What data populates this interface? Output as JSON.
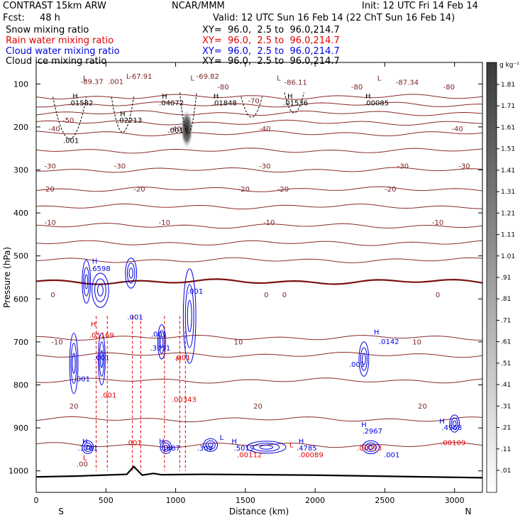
{
  "header": {
    "model": "CONTRAST 15km ARW",
    "center": "NCAR/MMM",
    "init": "Init: 12 UTC Fri 14 Feb 14",
    "fcst_label": "Fcst:",
    "fcst_value": "48 h",
    "valid": "Valid: 12 UTC Sun 16 Feb 14 (22 ChT Sun 16 Feb 14)",
    "fields": [
      {
        "label": "Snow mixing ratio",
        "xy": "XY=  96.0,  2.5 to  96.0,214.7",
        "color": "#000000"
      },
      {
        "label": "Rain water mixing ratio",
        "xy": "XY=  96.0,  2.5 to  96.0,214.7",
        "color": "#e00000"
      },
      {
        "label": "Cloud water mixing ratio",
        "xy": "XY=  96.0,  2.5 to  96.0,214.7",
        "color": "#0000e0"
      },
      {
        "label": "Cloud ice mixing ratio",
        "xy": "XY=  96.0,  2.5 to  96.0,214.7",
        "color": "#000000"
      }
    ]
  },
  "chart_data": {
    "type": "heatmap",
    "xlabel": "Distance (km)",
    "ylabel": "Pressure (hPa)",
    "x_ticks": [
      "0",
      "500",
      "1000",
      "1500",
      "2000",
      "2500",
      "3000"
    ],
    "y_ticks": [
      "100",
      "200",
      "300",
      "400",
      "500",
      "600",
      "700",
      "800",
      "900",
      "1000"
    ],
    "xlim": [
      0,
      3200
    ],
    "ylim": [
      50,
      1050
    ],
    "x_end_labels": {
      "left": "S",
      "right": "N"
    },
    "colorbar": {
      "unit": "g kg⁻¹",
      "ticks": [
        "1.81",
        "1.71",
        "1.61",
        "1.51",
        "1.41",
        "1.31",
        "1.21",
        "1.11",
        "1.01",
        ".91",
        ".81",
        ".71",
        ".61",
        ".51",
        ".41",
        ".31",
        ".21",
        ".11",
        ".01"
      ]
    },
    "temperature_contours": [
      {
        "t": "-80",
        "p": 130
      },
      {
        "t": "-70",
        "p": 148
      },
      {
        "t": "-60",
        "p": 168
      },
      {
        "t": "-50",
        "p": 190
      },
      {
        "t": "-40",
        "p": 215
      },
      {
        "t": "-30",
        "p": 255
      },
      {
        "t": "-20",
        "p": 300
      },
      {
        "t": "-10",
        "p": 345
      },
      {
        "t": "-10",
        "p": 385
      },
      {
        "t": "0",
        "p": 430
      },
      {
        "t": "0",
        "p": 470
      },
      {
        "t": "0",
        "p": 510
      },
      {
        "t": "0",
        "p": 560
      },
      {
        "t": "-10",
        "p": 690
      },
      {
        "t": "10",
        "p": 730
      },
      {
        "t": "10",
        "p": 790
      },
      {
        "t": "20",
        "p": 880
      },
      {
        "t": "20",
        "p": 940
      }
    ],
    "temperature_labels": [
      {
        "text": "-67.91",
        "x": 750,
        "p": 88
      },
      {
        "text": "-69.82",
        "x": 1230,
        "p": 88
      },
      {
        "text": "-89.37",
        "x": 400,
        "p": 100
      },
      {
        "text": ".001",
        "x": 570,
        "p": 100
      },
      {
        "text": "-86.11",
        "x": 1860,
        "p": 102
      },
      {
        "text": "-87.34",
        "x": 2660,
        "p": 102
      },
      {
        "text": "-80",
        "x": 1340,
        "p": 113
      },
      {
        "text": "-80",
        "x": 2300,
        "p": 113
      },
      {
        "text": "-80",
        "x": 2960,
        "p": 113
      },
      {
        "text": "-70",
        "x": 1560,
        "p": 145
      },
      {
        "text": "-50",
        "x": 230,
        "p": 190
      },
      {
        "text": "-40",
        "x": 130,
        "p": 210
      },
      {
        "text": "-40",
        "x": 1000,
        "p": 210
      },
      {
        "text": "-40",
        "x": 1640,
        "p": 210
      },
      {
        "text": "-40",
        "x": 3020,
        "p": 210
      },
      {
        "text": "-30",
        "x": 100,
        "p": 297
      },
      {
        "text": "-30",
        "x": 600,
        "p": 297
      },
      {
        "text": "-30",
        "x": 1640,
        "p": 297
      },
      {
        "text": "-30",
        "x": 2630,
        "p": 297
      },
      {
        "text": "-30",
        "x": 3070,
        "p": 297
      },
      {
        "text": "-20",
        "x": 90,
        "p": 350
      },
      {
        "text": "-20",
        "x": 740,
        "p": 350
      },
      {
        "text": "-20",
        "x": 1490,
        "p": 350
      },
      {
        "text": "-20",
        "x": 1770,
        "p": 350
      },
      {
        "text": "-20",
        "x": 2540,
        "p": 350
      },
      {
        "text": "-10",
        "x": 100,
        "p": 428
      },
      {
        "text": "-10",
        "x": 920,
        "p": 428
      },
      {
        "text": "-10",
        "x": 1670,
        "p": 428
      },
      {
        "text": "-10",
        "x": 2880,
        "p": 428
      },
      {
        "text": "0",
        "x": 120,
        "p": 596
      },
      {
        "text": "0",
        "x": 1650,
        "p": 596
      },
      {
        "text": "0",
        "x": 1780,
        "p": 596
      },
      {
        "text": "0",
        "x": 2880,
        "p": 596
      },
      {
        "text": "-10",
        "x": 150,
        "p": 706
      },
      {
        "text": "10",
        "x": 1450,
        "p": 706
      },
      {
        "text": "10",
        "x": 2730,
        "p": 706
      },
      {
        "text": "20",
        "x": 270,
        "p": 855
      },
      {
        "text": "20",
        "x": 1590,
        "p": 855
      },
      {
        "text": "20",
        "x": 2770,
        "p": 855
      },
      {
        "text": ".00",
        "x": 330,
        "p": 990
      }
    ],
    "highs_lows": [
      {
        "text": "L",
        "x": 350,
        "p": 92,
        "color": "#7a1f1f"
      },
      {
        "text": "L",
        "x": 660,
        "p": 88,
        "color": "#7a1f1f"
      },
      {
        "text": "L",
        "x": 1120,
        "p": 92,
        "color": "#7a1f1f"
      },
      {
        "text": "L",
        "x": 1740,
        "p": 92,
        "color": "#7a1f1f"
      },
      {
        "text": "L",
        "x": 2460,
        "p": 92,
        "color": "#7a1f1f"
      },
      {
        "text": "H",
        "x": 280,
        "p": 134,
        "color": "#000000"
      },
      {
        "text": "H",
        "x": 920,
        "p": 134,
        "color": "#000000"
      },
      {
        "text": "H",
        "x": 1290,
        "p": 134,
        "color": "#000000"
      },
      {
        "text": "H",
        "x": 1820,
        "p": 134,
        "color": "#000000"
      },
      {
        "text": "H",
        "x": 2380,
        "p": 134,
        "color": "#000000"
      },
      {
        "text": "H",
        "x": 620,
        "p": 175,
        "color": "#000000"
      },
      {
        "text": "H",
        "x": 420,
        "p": 518,
        "color": "#0000e0"
      },
      {
        "text": "H",
        "x": 410,
        "p": 665,
        "color": "#e00000"
      },
      {
        "text": "H",
        "x": 1020,
        "p": 745,
        "color": "#e00000"
      },
      {
        "text": "H",
        "x": 350,
        "p": 937,
        "color": "#0000e0"
      },
      {
        "text": "H",
        "x": 900,
        "p": 937,
        "color": "#0000e0"
      },
      {
        "text": "H",
        "x": 1420,
        "p": 937,
        "color": "#0000e0"
      },
      {
        "text": "H",
        "x": 1900,
        "p": 937,
        "color": "#0000e0"
      },
      {
        "text": "H",
        "x": 2350,
        "p": 898,
        "color": "#0000e0"
      },
      {
        "text": "H",
        "x": 2910,
        "p": 890,
        "color": "#0000e0"
      },
      {
        "text": "H",
        "x": 2440,
        "p": 683,
        "color": "#0000e0"
      },
      {
        "text": "L",
        "x": 1330,
        "p": 928,
        "color": "#0000e0"
      },
      {
        "text": "L",
        "x": 1830,
        "p": 945,
        "color": "#e00000"
      },
      {
        "text": "L",
        "x": 350,
        "p": 975,
        "color": "#e00000"
      }
    ],
    "values": [
      {
        "text": ".01582",
        "x": 320,
        "p": 150,
        "color": "#000000"
      },
      {
        "text": ".04072",
        "x": 970,
        "p": 150,
        "color": "#000000"
      },
      {
        "text": ".01848",
        "x": 1350,
        "p": 150,
        "color": "#000000"
      },
      {
        "text": ".01536",
        "x": 1860,
        "p": 150,
        "color": "#000000"
      },
      {
        "text": ".00085",
        "x": 2440,
        "p": 150,
        "color": "#000000"
      },
      {
        "text": ".02213",
        "x": 670,
        "p": 190,
        "color": "#000000"
      },
      {
        "text": ".001",
        "x": 1000,
        "p": 213,
        "color": "#000000"
      },
      {
        "text": ".001",
        "x": 250,
        "p": 237,
        "color": "#000000"
      },
      {
        "text": ".6598",
        "x": 460,
        "p": 535,
        "color": "#0000e0"
      },
      {
        "text": ".001",
        "x": 1140,
        "p": 588,
        "color": "#0000e0"
      },
      {
        "text": ".001",
        "x": 710,
        "p": 648,
        "color": "#0000e0"
      },
      {
        "text": ".001",
        "x": 880,
        "p": 688,
        "color": "#0000e0"
      },
      {
        "text": ".05169",
        "x": 470,
        "p": 690,
        "color": "#e00000"
      },
      {
        "text": ".3051",
        "x": 890,
        "p": 720,
        "color": "#0000e0"
      },
      {
        "text": ".001",
        "x": 470,
        "p": 742,
        "color": "#0000e0"
      },
      {
        "text": ".001",
        "x": 1050,
        "p": 742,
        "color": "#e00000"
      },
      {
        "text": ".001",
        "x": 2300,
        "p": 758,
        "color": "#0000e0"
      },
      {
        "text": ".0142",
        "x": 2530,
        "p": 705,
        "color": "#0000e0"
      },
      {
        "text": ".001",
        "x": 330,
        "p": 792,
        "color": "#0000e0"
      },
      {
        "text": ".001",
        "x": 520,
        "p": 830,
        "color": "#e00000"
      },
      {
        "text": ".00343",
        "x": 1060,
        "p": 840,
        "color": "#e00000"
      },
      {
        "text": ".1781",
        "x": 370,
        "p": 953,
        "color": "#0000e0"
      },
      {
        "text": ".001",
        "x": 700,
        "p": 940,
        "color": "#e00000"
      },
      {
        "text": ".1887",
        "x": 960,
        "p": 953,
        "color": "#0000e0"
      },
      {
        "text": ".309",
        "x": 1210,
        "p": 953,
        "color": "#0000e0"
      },
      {
        "text": ".5019",
        "x": 1490,
        "p": 953,
        "color": "#0000e0"
      },
      {
        "text": ".4785",
        "x": 1940,
        "p": 953,
        "color": "#0000e0"
      },
      {
        "text": ".2967",
        "x": 2410,
        "p": 913,
        "color": "#0000e0"
      },
      {
        "text": ".00013",
        "x": 2390,
        "p": 953,
        "color": "#e00000"
      },
      {
        "text": ".001",
        "x": 2550,
        "p": 968,
        "color": "#0000e0"
      },
      {
        "text": ".4968",
        "x": 2980,
        "p": 905,
        "color": "#0000e0"
      },
      {
        "text": ".00109",
        "x": 2990,
        "p": 940,
        "color": "#e00000"
      },
      {
        "text": ".00112",
        "x": 1530,
        "p": 968,
        "color": "#e00000"
      },
      {
        "text": ".00089",
        "x": 1970,
        "p": 968,
        "color": "#e00000"
      }
    ]
  }
}
